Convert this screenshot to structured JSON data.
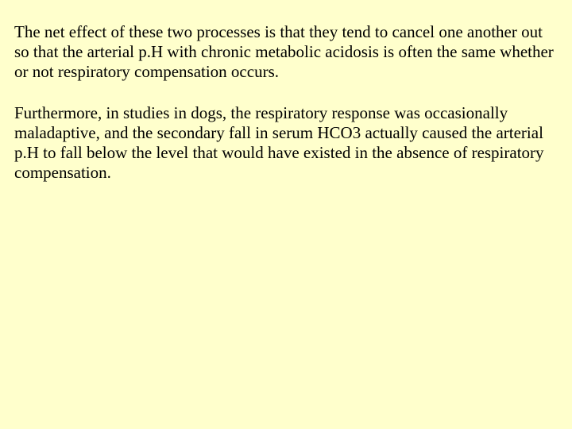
{
  "slide": {
    "background_color": "#ffffcc",
    "text_color": "#000000",
    "font_family": "Times New Roman",
    "font_size_pt": 16,
    "paragraphs": [
      "The net effect of these two processes is that they tend to cancel one another out so that the arterial p.H with chronic metabolic acidosis is often the same whether or not respiratory compensation occurs.",
      "Furthermore, in studies in dogs, the respiratory response was occasionally maladaptive, and the secondary fall in serum HCO3 actually caused the arterial p.H to fall below the level that would have existed in the absence of respiratory compensation."
    ]
  }
}
